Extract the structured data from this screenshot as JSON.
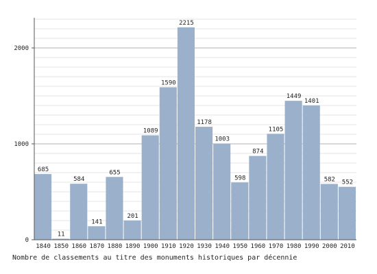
{
  "chart_data": {
    "type": "bar",
    "categories": [
      "1840",
      "1850",
      "1860",
      "1870",
      "1880",
      "1890",
      "1900",
      "1910",
      "1920",
      "1930",
      "1940",
      "1950",
      "1960",
      "1970",
      "1980",
      "1990",
      "2000",
      "2010"
    ],
    "values": [
      685,
      11,
      584,
      141,
      655,
      201,
      1089,
      1590,
      2215,
      1178,
      1003,
      598,
      874,
      1105,
      1449,
      1401,
      582,
      552
    ],
    "ylim": [
      0,
      2300
    ],
    "yticks": [
      0,
      1000,
      2000
    ],
    "grid": true,
    "bar_color": "#9bb1cb",
    "caption": "Nombre de classements au titre des monuments historiques par décennie"
  }
}
